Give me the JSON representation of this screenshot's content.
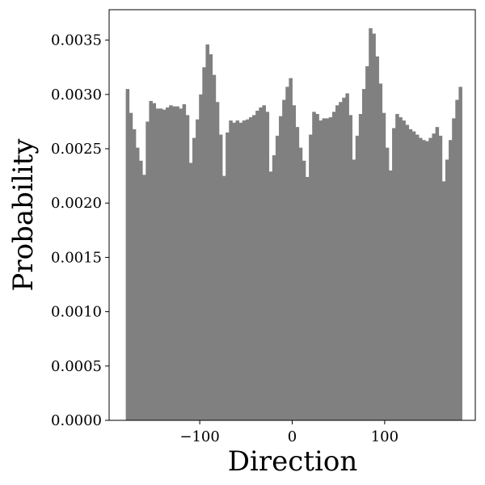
{
  "chart_data": {
    "type": "bar",
    "title": "",
    "xlabel": "Direction",
    "ylabel": "Probability",
    "xlim": [
      -198,
      198
    ],
    "ylim": [
      0,
      0.00378
    ],
    "grid": false,
    "bar_color": "#808080",
    "bin_start": -180,
    "bin_width": 3.6,
    "x_ticks": [
      -100,
      0,
      100
    ],
    "x_tick_labels": [
      "−100",
      "0",
      "100"
    ],
    "y_ticks": [
      0,
      0.0005,
      0.001,
      0.0015,
      0.002,
      0.0025,
      0.003,
      0.0035
    ],
    "y_tick_labels": [
      "0.0000",
      "0.0005",
      "0.0010",
      "0.0015",
      "0.0020",
      "0.0025",
      "0.0030",
      "0.0035"
    ],
    "values": [
      0.00305,
      0.00283,
      0.00268,
      0.00251,
      0.00239,
      0.00226,
      0.00275,
      0.00294,
      0.00292,
      0.00287,
      0.00287,
      0.00286,
      0.00288,
      0.0029,
      0.00289,
      0.00289,
      0.00287,
      0.00291,
      0.00281,
      0.00237,
      0.0026,
      0.00277,
      0.003,
      0.00325,
      0.00346,
      0.00337,
      0.00318,
      0.00293,
      0.00263,
      0.00225,
      0.00265,
      0.00276,
      0.00274,
      0.00276,
      0.00274,
      0.00276,
      0.00277,
      0.00279,
      0.00281,
      0.00285,
      0.00288,
      0.0029,
      0.00284,
      0.00229,
      0.00244,
      0.00262,
      0.0028,
      0.00295,
      0.00307,
      0.00315,
      0.0029,
      0.0027,
      0.00251,
      0.00239,
      0.00224,
      0.00263,
      0.00284,
      0.00282,
      0.00276,
      0.00278,
      0.00278,
      0.00279,
      0.00284,
      0.0029,
      0.00293,
      0.00297,
      0.00301,
      0.00281,
      0.0024,
      0.00262,
      0.00282,
      0.00305,
      0.00326,
      0.00361,
      0.00356,
      0.00335,
      0.0031,
      0.00283,
      0.00251,
      0.0023,
      0.00269,
      0.00282,
      0.00279,
      0.00276,
      0.00272,
      0.00268,
      0.00266,
      0.00263,
      0.0026,
      0.00258,
      0.00257,
      0.0026,
      0.00264,
      0.0027,
      0.00262,
      0.0022,
      0.0024,
      0.00258,
      0.00278,
      0.00295,
      0.00307
    ]
  }
}
